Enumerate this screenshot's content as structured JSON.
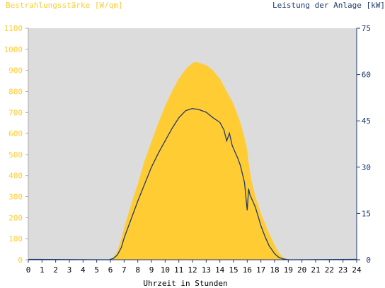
{
  "chart_data": {
    "type": "area",
    "left_axis_label": "Bestrahlungsstärke [W/qm]",
    "right_axis_label": "Leistung der Anlage [kW]",
    "xlabel": "Uhrzeit in Stunden",
    "xlim": [
      0,
      24
    ],
    "x_ticks": [
      "0",
      "1",
      "2",
      "3",
      "4",
      "5",
      "6",
      "7",
      "8",
      "9",
      "10",
      "11",
      "12",
      "13",
      "14",
      "15",
      "16",
      "17",
      "18",
      "19",
      "20",
      "21",
      "22",
      "23",
      "24"
    ],
    "ylim_left": [
      0,
      1100
    ],
    "y_ticks_left": [
      "0",
      "100",
      "200",
      "300",
      "400",
      "500",
      "600",
      "700",
      "800",
      "900",
      "1000",
      "1100"
    ],
    "ylim_right": [
      0,
      75
    ],
    "y_ticks_right": [
      "0",
      "15",
      "30",
      "45",
      "60",
      "75"
    ],
    "grid": false,
    "colors": {
      "irradiance": "#ffcc33",
      "power": "#1f3a6e",
      "plot_background": "#dcdcdc",
      "left_axis_text": "#ffcc33",
      "right_axis_text": "#1f3a6e"
    },
    "series": [
      {
        "axis": "left",
        "x": [
          5.9,
          6.2,
          6.5,
          6.8,
          7.0,
          7.5,
          8.0,
          8.5,
          9.0,
          9.5,
          10.0,
          10.5,
          11.0,
          11.5,
          12.0,
          12.25,
          12.5,
          13.0,
          13.5,
          14.0,
          14.5,
          15.0,
          15.5,
          15.8,
          16.0,
          16.1,
          16.3,
          16.6,
          17.0,
          17.5,
          18.0,
          18.3,
          18.6,
          18.9,
          19.1
        ],
        "values": [
          0,
          10,
          40,
          100,
          150,
          260,
          360,
          470,
          560,
          650,
          730,
          800,
          860,
          905,
          935,
          940,
          935,
          925,
          900,
          860,
          800,
          740,
          650,
          580,
          520,
          460,
          380,
          300,
          220,
          140,
          70,
          35,
          12,
          3,
          0
        ]
      },
      {
        "axis": "right",
        "x": [
          5.9,
          6.2,
          6.5,
          6.8,
          7.0,
          7.5,
          8.0,
          8.5,
          9.0,
          9.5,
          10.0,
          10.5,
          11.0,
          11.5,
          12.0,
          12.5,
          13.0,
          13.5,
          14.0,
          14.3,
          14.5,
          14.7,
          14.9,
          15.1,
          15.3,
          15.5,
          15.8,
          16.0,
          16.1,
          16.2,
          16.4,
          16.6,
          16.8,
          17.0,
          17.3,
          17.6,
          18.0,
          18.3,
          18.6,
          18.9,
          19.1
        ],
        "values": [
          0,
          0.4,
          1.5,
          4,
          7,
          13,
          19,
          24.5,
          30,
          34.5,
          38.5,
          42.5,
          46,
          48.3,
          49,
          48.6,
          47.8,
          46,
          44.5,
          42,
          38.5,
          41,
          37,
          35,
          33,
          30.5,
          25,
          16,
          23,
          21,
          19,
          17,
          14,
          11,
          7.5,
          4.5,
          2,
          0.8,
          0.3,
          0.1,
          0
        ]
      }
    ]
  }
}
